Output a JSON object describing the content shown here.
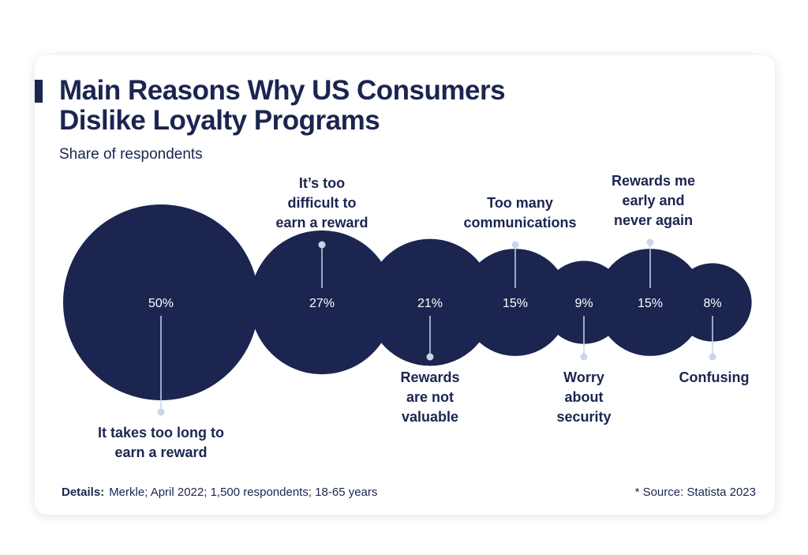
{
  "chart_data": {
    "type": "bubble",
    "title": "Main Reasons Why US Consumers Dislike Loyalty Programs",
    "subtitle": "Share of respondents",
    "unit": "%",
    "categories": [
      "It takes too long to earn a reward",
      "It’s too difficult to earn a reward",
      "Rewards are not valuable",
      "Too many communications",
      "Worry about security",
      "Rewards me early and never again",
      "Confusing"
    ],
    "label_lines": [
      [
        "It takes too long to",
        "earn a reward"
      ],
      [
        "It’s too",
        "difficult to",
        "earn a reward"
      ],
      [
        "Rewards",
        "are not",
        "valuable"
      ],
      [
        "Too many",
        "communications"
      ],
      [
        "Worry",
        "about",
        "security"
      ],
      [
        "Rewards me",
        "early and",
        "never again"
      ],
      [
        "Confusing"
      ]
    ],
    "label_positions": [
      "below",
      "above",
      "below",
      "above",
      "below",
      "above",
      "below"
    ],
    "values": [
      50,
      27,
      21,
      15,
      9,
      15,
      8
    ],
    "value_labels": [
      "50%",
      "27%",
      "21%",
      "15%",
      "9%",
      "15%",
      "8%"
    ],
    "colors": {
      "bubble": "#1b2550",
      "connector": "#c9d5ea",
      "text": "#1b2550"
    }
  },
  "footer": {
    "details_label": "Details:",
    "details_text": "Merkle; April 2022; 1,500 respondents; 18-65 years",
    "source": "* Source: Statista 2023"
  }
}
